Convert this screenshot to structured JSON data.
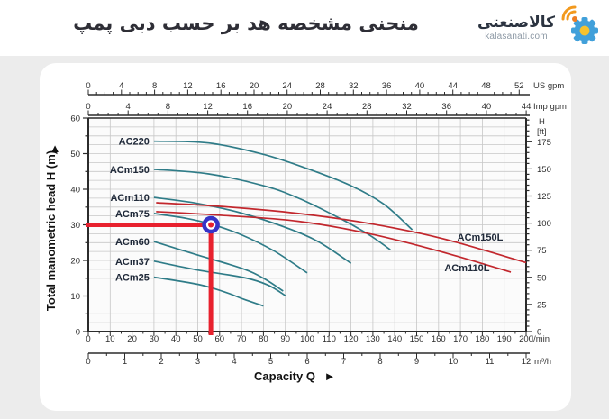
{
  "header": {
    "title": "منحنی مشخصه هد بر حسب دبی پمپ",
    "logo": {
      "brand": "کالاصنعتی",
      "domain": "kalasanati.com",
      "icon": "gear-with-signal-icon",
      "gear_color": "#41a0da",
      "hub_color": "#f6c22e",
      "signal_color": "#f2991d",
      "dot_color": "#ed7d23"
    }
  },
  "chart_data": {
    "type": "line",
    "title": "",
    "xlabel": "Capacity Q",
    "xlabel_arrow": "►",
    "ylabel_left": "Total manometric head H (m)",
    "ylabel_arrow": "▲",
    "x_max_lmin": 200,
    "y_max_m": 60,
    "grid": {
      "x_step_lmin": 10,
      "y_step_m": 2.5
    },
    "axes": {
      "us_gpm": {
        "unit": "US gpm",
        "lmin_per_unit": 3.785,
        "tick_step": 4,
        "minor_step": 1,
        "ticks": [
          0,
          4,
          8,
          12,
          16,
          20,
          24,
          28,
          32,
          36,
          40,
          44,
          48,
          52
        ]
      },
      "imp_gpm": {
        "unit": "Imp gpm",
        "lmin_per_unit": 4.546,
        "tick_step": 4,
        "minor_step": 1,
        "ticks": [
          0,
          4,
          8,
          12,
          16,
          20,
          24,
          28,
          32,
          36,
          40,
          44
        ]
      },
      "lmin": {
        "unit": "l/min",
        "lmin_per_unit": 1,
        "tick_step": 10,
        "minor_step": 5,
        "ticks": [
          0,
          10,
          20,
          30,
          40,
          50,
          60,
          70,
          80,
          90,
          100,
          110,
          120,
          130,
          140,
          150,
          160,
          170,
          180,
          190,
          200
        ]
      },
      "m3h": {
        "unit": "m³/h",
        "lmin_per_unit": 16.667,
        "tick_step": 1,
        "minor_step": 0.5,
        "ticks": [
          0,
          1,
          2,
          3,
          4,
          5,
          6,
          7,
          8,
          9,
          10,
          11,
          12
        ]
      },
      "left_m": {
        "tick_step": 10,
        "minor_step": 5,
        "ticks": [
          0,
          10,
          20,
          30,
          40,
          50,
          60
        ]
      },
      "right_ft": {
        "unit_lines": [
          "H",
          "[ft]"
        ],
        "m_per_unit": 0.3048,
        "tick_step": 25,
        "minor_step": 5,
        "ticks": [
          0,
          25,
          50,
          75,
          100,
          125,
          150,
          175
        ]
      }
    },
    "series": [
      {
        "name": "AC220",
        "color_key": "teal",
        "points": [
          [
            30,
            53.5
          ],
          [
            55,
            53
          ],
          [
            80,
            49.8
          ],
          [
            100,
            45.8
          ],
          [
            120,
            41
          ],
          [
            135,
            35.8
          ],
          [
            148,
            28.6
          ]
        ]
      },
      {
        "name": "ACm150",
        "color_key": "teal",
        "points": [
          [
            30,
            45.6
          ],
          [
            55,
            44.3
          ],
          [
            80,
            41
          ],
          [
            96,
            37.5
          ],
          [
            115,
            31.8
          ],
          [
            128,
            27.3
          ],
          [
            138,
            23
          ]
        ]
      },
      {
        "name": "ACm110",
        "color_key": "teal",
        "points": [
          [
            30,
            37.7
          ],
          [
            50,
            36
          ],
          [
            70,
            33.3
          ],
          [
            90,
            29.3
          ],
          [
            105,
            25.3
          ],
          [
            120,
            19.2
          ]
        ]
      },
      {
        "name": "ACm75",
        "color_key": "teal",
        "points": [
          [
            30,
            33.2
          ],
          [
            45,
            31.8
          ],
          [
            56,
            30.2
          ],
          [
            70,
            27.2
          ],
          [
            85,
            22.6
          ],
          [
            100,
            16.5
          ]
        ]
      },
      {
        "name": "ACm60",
        "color_key": "teal",
        "points": [
          [
            30,
            25.3
          ],
          [
            50,
            21.5
          ],
          [
            70,
            17.8
          ],
          [
            80,
            15
          ],
          [
            89,
            11.4
          ]
        ]
      },
      {
        "name": "ACm37",
        "color_key": "teal",
        "points": [
          [
            30,
            19.8
          ],
          [
            50,
            17.3
          ],
          [
            71,
            15.2
          ],
          [
            82,
            13.1
          ],
          [
            90,
            10.1
          ]
        ]
      },
      {
        "name": "ACm25",
        "color_key": "teal",
        "points": [
          [
            30,
            15.3
          ],
          [
            50,
            13.3
          ],
          [
            62,
            11.2
          ],
          [
            71,
            9.1
          ],
          [
            80,
            7.2
          ]
        ]
      },
      {
        "name": "ACm150L",
        "color_key": "red",
        "label_at": [
          179,
          25.6
        ],
        "points": [
          [
            31,
            36.2
          ],
          [
            60,
            35.2
          ],
          [
            96,
            33.2
          ],
          [
            130,
            30.2
          ],
          [
            162,
            26.1
          ],
          [
            200,
            19.4
          ]
        ]
      },
      {
        "name": "ACm110L",
        "color_key": "red",
        "label_at": [
          173,
          17.0
        ],
        "points": [
          [
            31,
            33.7
          ],
          [
            60,
            32.7
          ],
          [
            96,
            31
          ],
          [
            130,
            27.3
          ],
          [
            162,
            22.3
          ],
          [
            193,
            16.7
          ]
        ]
      }
    ],
    "highlight": {
      "q_lmin": 56,
      "h_m": 30
    },
    "colors": {
      "teal": "#2f7c88",
      "red": "#c2272d",
      "grid": "#c7c7c7",
      "axis": "#2b2b2b",
      "plot_bg": "#fbfbfb",
      "crosshair": "#e8212e",
      "marker_ring": "#3634c8"
    },
    "legend_position": "curve-labels-inline",
    "grid_on": true
  }
}
